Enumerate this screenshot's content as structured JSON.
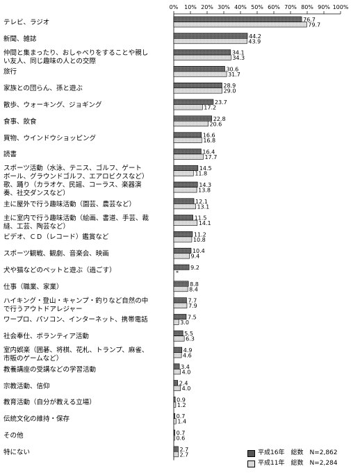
{
  "chart_data": {
    "type": "bar",
    "orientation": "horizontal",
    "categories": [
      "テレビ、ラジオ",
      "新聞、雑誌",
      "仲間と集まったり、おしゃべりをすることや親しい友人、同じ趣味の人との交際",
      "旅行",
      "家族との団らん、孫と遊ぶ",
      "散歩、ウォーキング、ジョギング",
      "食事、飲食",
      "買物、ウインドウショッピング",
      "読書",
      "スポーツ活動（水泳、テニス、ゴルフ、ゲートボール、グラウンドゴルフ、エアロビクスなど）",
      "歌、踊り（カラオケ、民謡、コーラス、楽器演奏、社交ダンスなど）",
      "主に屋外で行う趣味活動（園芸、農芸など）",
      "主に室内で行う趣味活動（絵画、書道、手芸、裁縫、工芸、陶芸など）",
      "ビデオ、ＣＤ（レコード）鑑賞など",
      "スポーツ観戦、観劇、音楽会、映画",
      "犬や猫などのペットと遊ぶ（過ごす）",
      "仕事（職業、家業）",
      "ハイキング・登山・キャンプ・釣りなど自然の中で行うアウトドアレジャー",
      "ワープロ、パソコン、インターネット、携帯電話",
      "社会奉仕、ボランティア活動",
      "室内娯楽（囲碁、将棋、花札、トランプ、麻雀、市販のゲームなど）",
      "教養講座の受講などの学習活動",
      "宗教活動、信仰",
      "教育活動（自分が教える立場）",
      "伝統文化の維持・保存",
      "その他",
      "特にない"
    ],
    "category_lines": [
      [
        "テレビ、ラジオ"
      ],
      [
        "新聞、雑誌"
      ],
      [
        "仲間と集まったり、おしゃべりをすることや親し",
        "い友人、同じ趣味の人との交際"
      ],
      [
        "旅行"
      ],
      [
        "家族との団らん、孫と遊ぶ"
      ],
      [
        "散歩、ウォーキング、ジョギング"
      ],
      [
        "食事、飲食"
      ],
      [
        "買物、ウインドウショッピング"
      ],
      [
        "読書"
      ],
      [
        "スポーツ活動（水泳、テニス、ゴルフ、ゲート",
        "ボール、グラウンドゴルフ、エアロビクスなど）"
      ],
      [
        "歌、踊り（カラオケ、民謡、コーラス、楽器演",
        "奏、社交ダンスなど）"
      ],
      [
        "主に屋外で行う趣味活動（園芸、農芸など）"
      ],
      [
        "主に室内で行う趣味活動（絵画、書道、手芸、裁",
        "縫、工芸、陶芸など）"
      ],
      [
        "ビデオ、ＣＤ（レコード）鑑賞など"
      ],
      [
        "スポーツ観戦、観劇、音楽会、映画"
      ],
      [
        "犬や猫などのペットと遊ぶ（過ごす）"
      ],
      [
        "仕事（職業、家業）"
      ],
      [
        "ハイキング・登山・キャンプ・釣りなど自然の中",
        "で行うアウトドアレジャー"
      ],
      [
        "ワープロ、パソコン、インターネット、携帯電話"
      ],
      [
        "社会奉仕、ボランティア活動"
      ],
      [
        "室内娯楽（囲碁、将棋、花札、トランプ、麻雀、",
        "市販のゲームなど）"
      ],
      [
        "教養講座の受講などの学習活動"
      ],
      [
        "宗教活動、信仰"
      ],
      [
        "教育活動（自分が教える立場）"
      ],
      [
        "伝統文化の維持・保存"
      ],
      [
        "その他"
      ],
      [
        "特にない"
      ]
    ],
    "series": [
      {
        "name": "平成16年　総数　N=2,862",
        "values": [
          76.7,
          44.2,
          34.1,
          30.6,
          28.9,
          23.7,
          22.8,
          16.6,
          16.4,
          14.5,
          14.3,
          12.1,
          11.5,
          11.2,
          10.4,
          9.2,
          8.8,
          7.7,
          7.5,
          5.5,
          4.9,
          3.4,
          2.4,
          0.9,
          0.7,
          0.7,
          2.7
        ],
        "labels": [
          "76.7",
          "44.2",
          "34.1",
          "30.6",
          "28.9",
          "23.7",
          "22.8",
          "16.6",
          "16.4",
          "14.5",
          "14.3",
          "12.1",
          "11.5",
          "11.2",
          "10.4",
          "9.2",
          "8.8",
          "7.7",
          "7.5",
          "5.5",
          "4.9",
          "3.4",
          "2.4",
          "0.9",
          "0.7",
          "0.7",
          "2.7"
        ],
        "color": "#555555"
      },
      {
        "name": "平成11年　総数　N=2,284",
        "values": [
          79.7,
          43.9,
          34.3,
          31.7,
          29.0,
          17.2,
          20.6,
          16.8,
          17.7,
          11.8,
          13.8,
          13.1,
          14.1,
          10.8,
          9.4,
          null,
          8.4,
          7.9,
          3.0,
          6.3,
          4.6,
          4.0,
          4.0,
          1.2,
          1.4,
          0.6,
          2.7
        ],
        "labels": [
          "79.7",
          "43.9",
          "34.3",
          "31.7",
          "29.0",
          "17.2",
          "20.6",
          "16.8",
          "17.7",
          "11.8",
          "13.8",
          "13.1",
          "14.1",
          "10.8",
          "9.4",
          "*",
          "8.4",
          "7.9",
          "3.0",
          "6.3",
          "4.6",
          "4.0",
          "4.0",
          "1.2",
          "1.4",
          "0.6",
          "2.7"
        ],
        "color": "#d8d8d8"
      }
    ],
    "xticks": [
      "0%",
      "10%",
      "20%",
      "30%",
      "40%",
      "50%",
      "60%",
      "70%",
      "80%",
      "90%",
      "100%"
    ],
    "xlim": [
      0,
      100
    ],
    "legend_position": "bottom-right",
    "legend": [
      "平成16年　総数　N=2,862",
      "平成11年　総数　N=2,284"
    ]
  }
}
